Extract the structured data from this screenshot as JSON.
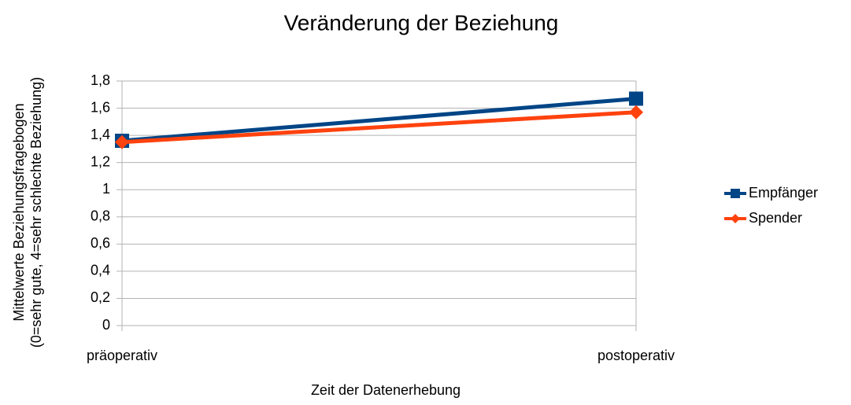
{
  "chart_data": {
    "type": "line",
    "title": "Veränderung der Beziehung",
    "xlabel": "Zeit der Datenerhebung",
    "ylabel": [
      "Mittelwerte Beziehungsfragebogen",
      "(0=sehr gute, 4=sehr schlechte Beziehung)"
    ],
    "categories": [
      "präoperativ",
      "postoperativ"
    ],
    "series": [
      {
        "name": "Empfänger",
        "color": "#004586",
        "marker": "square",
        "values": [
          1.36,
          1.67
        ]
      },
      {
        "name": "Spender",
        "color": "#ff420e",
        "marker": "diamond",
        "values": [
          1.35,
          1.57
        ]
      }
    ],
    "ylim": [
      0,
      1.8
    ],
    "yticks": [
      0,
      {
        "value": 0.2,
        "label": "0,2"
      },
      {
        "value": 0.4,
        "label": "0,4"
      },
      {
        "value": 0.6,
        "label": "0,6"
      },
      {
        "value": 0.8,
        "label": "0,8"
      },
      1,
      {
        "value": 1.2,
        "label": "1,2"
      },
      {
        "value": 1.4,
        "label": "1,4"
      },
      {
        "value": 1.6,
        "label": "1,6"
      },
      {
        "value": 1.8,
        "label": "1,8"
      }
    ],
    "grid": true,
    "legend": "right"
  }
}
